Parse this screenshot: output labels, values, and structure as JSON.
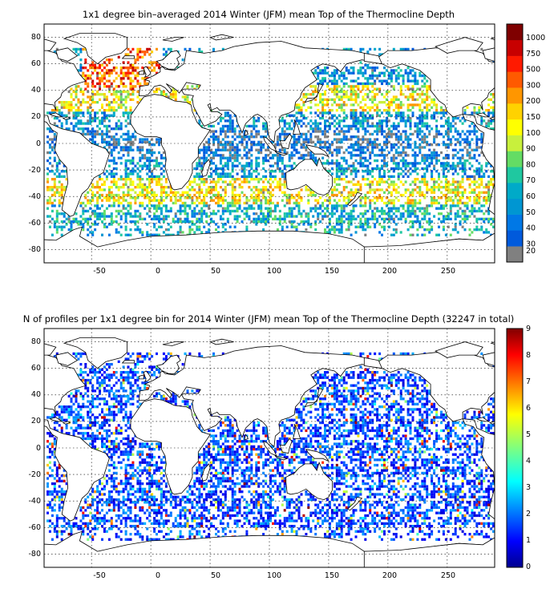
{
  "panels": [
    {
      "title": "1x1 degree bin–averaged 2014 Winter (JFM) mean Top of the Thermocline Depth",
      "xticks": [
        "-50",
        "0",
        "50",
        "100",
        "150",
        "200",
        "250"
      ],
      "yticks": [
        "80",
        "60",
        "40",
        "20",
        "0",
        "-20",
        "-40",
        "-60",
        "-80"
      ],
      "colorbar": {
        "type": "discrete",
        "labels": [
          "1000",
          "750",
          "500",
          "300",
          "200",
          "150",
          "100",
          "90",
          "80",
          "70",
          "60",
          "50",
          "40",
          "30",
          "20"
        ],
        "colors": [
          "#7f0000",
          "#c80000",
          "#ff1a00",
          "#ff5a00",
          "#ff9600",
          "#ffd200",
          "#ffff00",
          "#c8f03c",
          "#64dc64",
          "#1fc8a0",
          "#00aac8",
          "#0096d2",
          "#0078e6",
          "#005adc",
          "#808080"
        ]
      }
    },
    {
      "title": "N of profiles per 1x1 degree bin for 2014 Winter (JFM) mean Top of the Thermocline Depth  (32247 in total)",
      "xticks": [
        "-50",
        "0",
        "50",
        "100",
        "150",
        "200",
        "250"
      ],
      "yticks": [
        "80",
        "60",
        "40",
        "20",
        "0",
        "-20",
        "-40",
        "-60",
        "-80"
      ],
      "colorbar": {
        "type": "continuous",
        "labels": [
          "9",
          "8",
          "7",
          "6",
          "5",
          "4",
          "3",
          "2",
          "1",
          "0"
        ],
        "colormap": "jet"
      }
    }
  ],
  "map": {
    "lon_range": [
      -90,
      290
    ],
    "lat_range": [
      -90,
      90
    ],
    "grid": true,
    "land_color": "#ffffff",
    "coast_color": "#000000"
  }
}
